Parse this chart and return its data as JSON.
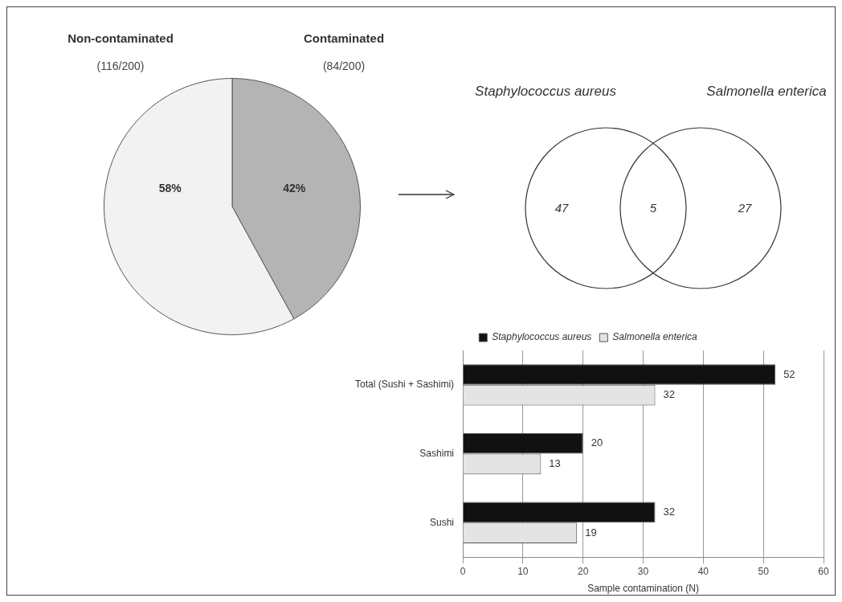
{
  "chart_data": [
    {
      "type": "pie",
      "categories": [
        "Contaminated",
        "Non-contaminated"
      ],
      "values": [
        42,
        58
      ],
      "colors": [
        "#b4b4b4",
        "#f2f2f2"
      ],
      "value_labels": [
        "42%",
        "58%"
      ],
      "annotations": [
        "(84/200)",
        "(116/200)"
      ],
      "legend": false
    },
    {
      "type": "other",
      "categories": [
        "Staphylococcus aureus",
        null,
        "Salmonella enterica"
      ],
      "values": [
        47,
        5,
        27
      ],
      "value_labels": [
        "47",
        "5",
        "27"
      ]
    },
    {
      "type": "bar",
      "orientation": "horizontal",
      "categories": [
        "Total (Sushi + Sashimi)",
        "Sashimi",
        "Sushi"
      ],
      "series": [
        {
          "name": "Staphylococcus aureus",
          "color": "#111111",
          "values": [
            52,
            20,
            32
          ]
        },
        {
          "name": "Salmonella enterica",
          "color": "#e4e4e4",
          "values": [
            32,
            13,
            19
          ]
        }
      ],
      "xlabel": "Sample contamination (N)",
      "xlim": [
        0,
        60
      ],
      "xticks": [
        0,
        10,
        20,
        30,
        40,
        50,
        60
      ],
      "grid": "x",
      "legend": "top",
      "data_labels": true
    }
  ]
}
